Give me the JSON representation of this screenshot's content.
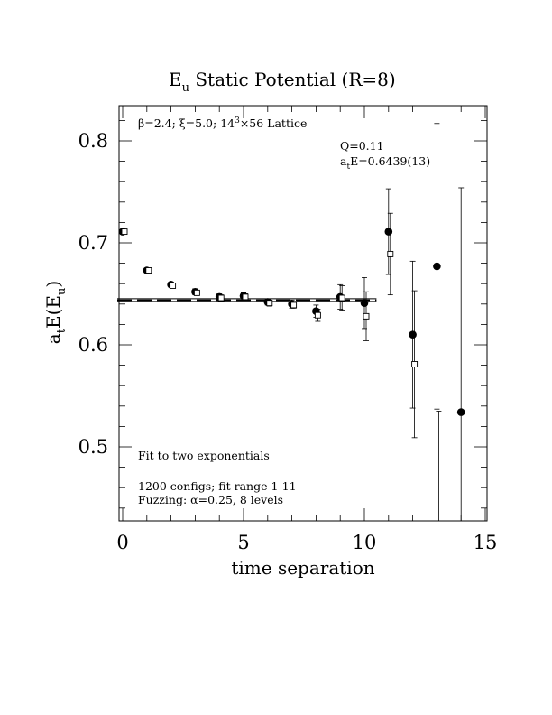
{
  "chart_data": {
    "type": "scatter",
    "title_main": "E",
    "title_sub": "u",
    "title_rest": " Static Potential (R=8)",
    "xlabel": "time separation",
    "ylabel_pre": "a",
    "ylabel_sub1": "t",
    "ylabel_mid": "E(E",
    "ylabel_sub2": "u",
    "ylabel_post": ")",
    "xlim": [
      0,
      15
    ],
    "ylim": [
      0.428,
      0.834
    ],
    "x_ticks": [
      0,
      5,
      10,
      15
    ],
    "x_tick_labels": [
      "0",
      "5",
      "10",
      "15"
    ],
    "y_ticks": [
      0.5,
      0.6,
      0.7,
      0.8
    ],
    "y_tick_labels": [
      "0.5",
      "0.6",
      "0.7",
      "0.8"
    ],
    "annotations": {
      "lattice_beta": "β=2.4; ",
      "lattice_xi": "ξ=5.0; 14",
      "lattice_exp": "3",
      "lattice_rest": "×56 Lattice",
      "q": "Q=0.11",
      "ate_pre": "a",
      "ate_sub": "t",
      "ate_rest": "E=0.6439(13)",
      "fit_note": "Fit to two exponentials",
      "configs": "1200 configs; fit range 1-11",
      "fuzz_pre": "Fuzzing: ",
      "fuzz_alpha": "α",
      "fuzz_rest": "=0.25, 8 levels"
    },
    "fit": {
      "value": 0.6439,
      "error": 0.0013,
      "x_range": [
        0,
        10.5
      ]
    },
    "series": [
      {
        "marker": "filled-circle",
        "points": [
          {
            "x": 0,
            "y": 0.711,
            "err": 0.002
          },
          {
            "x": 1,
            "y": 0.673,
            "err": 0.002
          },
          {
            "x": 2,
            "y": 0.659,
            "err": 0.002
          },
          {
            "x": 3,
            "y": 0.652,
            "err": 0.003
          },
          {
            "x": 4,
            "y": 0.647,
            "err": 0.003
          },
          {
            "x": 5,
            "y": 0.648,
            "err": 0.003
          },
          {
            "x": 6,
            "y": 0.642,
            "err": 0.003
          },
          {
            "x": 7,
            "y": 0.64,
            "err": 0.004
          },
          {
            "x": 8,
            "y": 0.633,
            "err": 0.006
          },
          {
            "x": 9,
            "y": 0.647,
            "err": 0.012
          },
          {
            "x": 10,
            "y": 0.641,
            "err": 0.025
          },
          {
            "x": 11,
            "y": 0.711,
            "err": 0.042
          },
          {
            "x": 12,
            "y": 0.61,
            "err": 0.072
          },
          {
            "x": 13,
            "y": 0.677,
            "err": 0.14
          },
          {
            "x": 14,
            "y": 0.534,
            "err": 0.22
          }
        ]
      },
      {
        "marker": "open-square",
        "points": [
          {
            "x": 0,
            "y": 0.711,
            "err": 0.002
          },
          {
            "x": 1,
            "y": 0.673,
            "err": 0.002
          },
          {
            "x": 2,
            "y": 0.658,
            "err": 0.002
          },
          {
            "x": 3,
            "y": 0.651,
            "err": 0.002
          },
          {
            "x": 4,
            "y": 0.646,
            "err": 0.003
          },
          {
            "x": 5,
            "y": 0.647,
            "err": 0.003
          },
          {
            "x": 6,
            "y": 0.641,
            "err": 0.003
          },
          {
            "x": 7,
            "y": 0.639,
            "err": 0.003
          },
          {
            "x": 8,
            "y": 0.629,
            "err": 0.006
          },
          {
            "x": 9,
            "y": 0.646,
            "err": 0.012
          },
          {
            "x": 10,
            "y": 0.628,
            "err": 0.024
          },
          {
            "x": 11,
            "y": 0.689,
            "err": 0.04
          },
          {
            "x": 12,
            "y": 0.581,
            "err": 0.072
          },
          {
            "x": 13,
            "y": 0.4,
            "err": 0.135
          }
        ]
      }
    ]
  }
}
